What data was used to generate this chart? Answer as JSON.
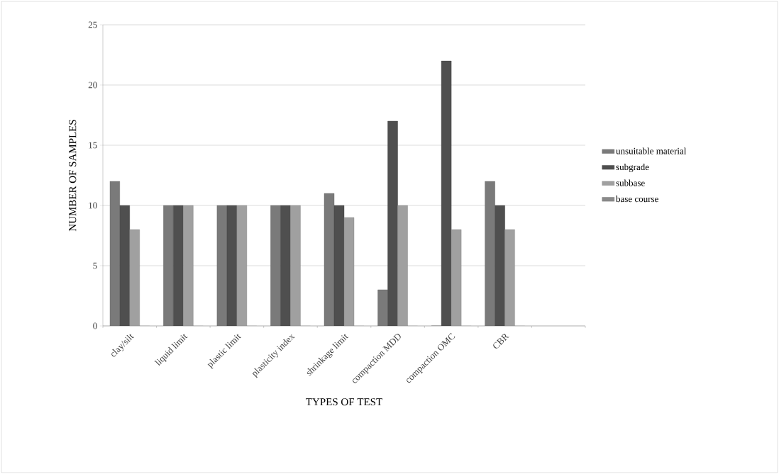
{
  "chart_data": {
    "type": "bar",
    "xlabel": "TYPES OF TEST",
    "ylabel": "NUMBER OF SAMPLES",
    "categories": [
      "clay/silt",
      "liquid limit",
      "plastic limit",
      "plasticity index",
      "shrinkage limit",
      "compaction MDD",
      "compaction OMC",
      "CBR",
      null
    ],
    "series": [
      {
        "name": "unsuitable material",
        "color": "#7a7a7a",
        "values": [
          12,
          10,
          10,
          10,
          11,
          3,
          0,
          12,
          null
        ]
      },
      {
        "name": "subgrade",
        "color": "#4f4f4f",
        "values": [
          10,
          10,
          10,
          10,
          10,
          17,
          22,
          10,
          null
        ]
      },
      {
        "name": "subbase",
        "color": "#a0a0a0",
        "values": [
          8,
          10,
          10,
          10,
          9,
          10,
          8,
          8,
          null
        ]
      },
      {
        "name": "base course",
        "color": "#8a8a8a",
        "values": [
          0,
          0,
          0,
          0,
          0,
          0,
          0,
          0,
          null
        ]
      }
    ],
    "ylim": [
      0,
      25
    ],
    "yticks": [
      0,
      5,
      10,
      15,
      20,
      25
    ],
    "grid": "y",
    "legend": "right"
  }
}
